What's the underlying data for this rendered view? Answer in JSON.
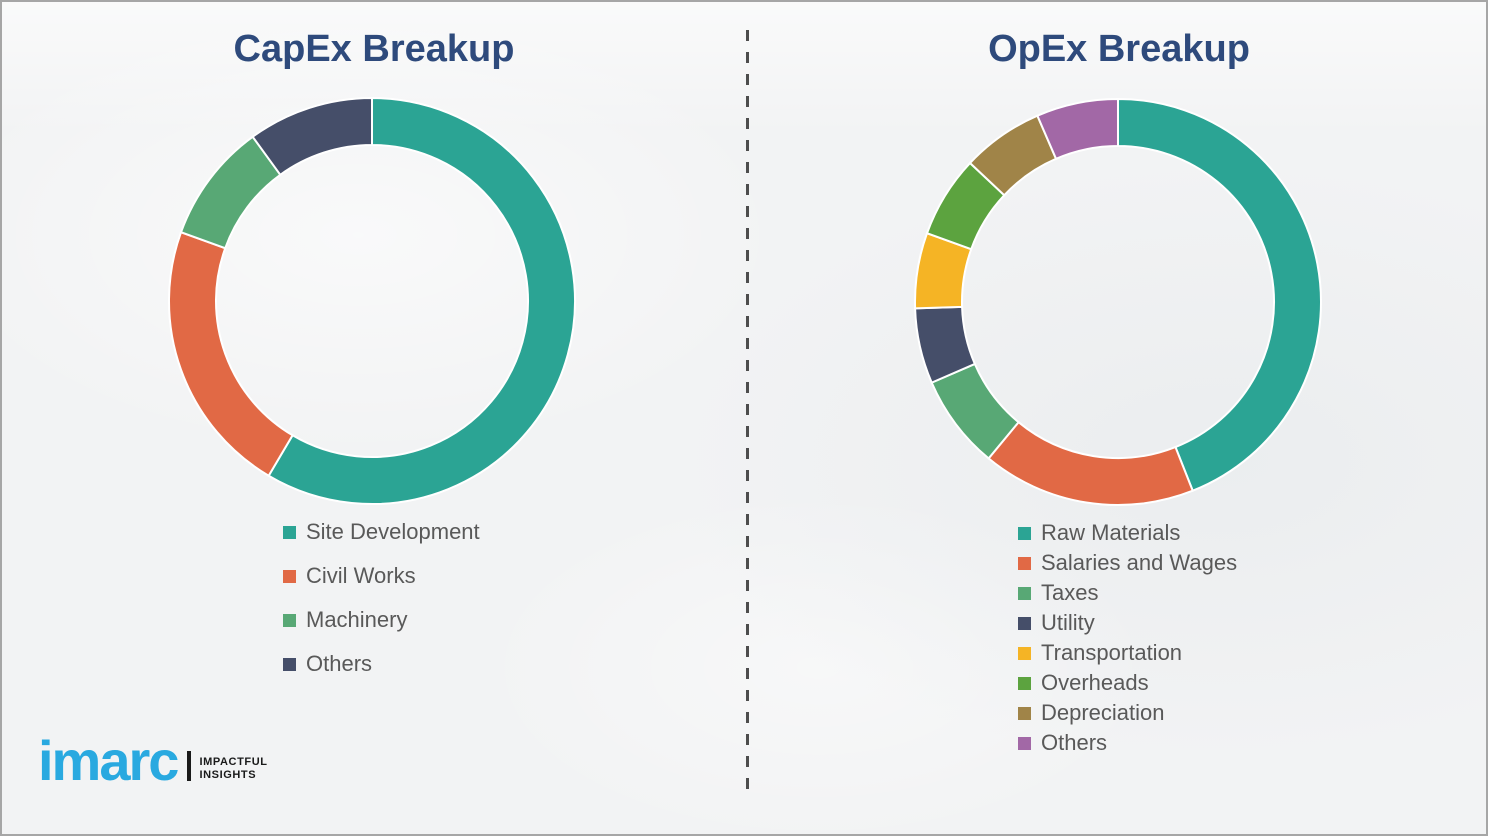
{
  "theme": {
    "background": "#f2f3f4",
    "border_color": "#a6a6a6",
    "divider_color": "#4d4d4d",
    "title_color": "#2e4a7c",
    "legend_text_color": "#595959",
    "segment_gap_color": "#ffffff",
    "logo_blue": "#29a9e0",
    "logo_black": "#1a1a1a"
  },
  "chart_data": [
    {
      "type": "donut",
      "title": "CapEx Breakup",
      "categories": [
        "Site Development",
        "Civil Works",
        "Machinery",
        "Others"
      ],
      "values": [
        58.5,
        22,
        9.5,
        10
      ],
      "colors": [
        "#2ba494",
        "#e16945",
        "#58a875",
        "#454e69"
      ],
      "units": "percent",
      "start_angle_deg": 0,
      "direction": "clockwise",
      "legend_position": "below"
    },
    {
      "type": "donut",
      "title": "OpEx Breakup",
      "categories": [
        "Raw Materials",
        "Salaries and Wages",
        "Taxes",
        "Utility",
        "Transportation",
        "Overheads",
        "Depreciation",
        "Others"
      ],
      "values": [
        44,
        17,
        7.5,
        6,
        6,
        6.5,
        6.5,
        6.5
      ],
      "colors": [
        "#2ba494",
        "#e16945",
        "#58a875",
        "#454e69",
        "#f5b425",
        "#5ca33f",
        "#a08448",
        "#a268a6"
      ],
      "units": "percent",
      "start_angle_deg": 0,
      "direction": "clockwise",
      "legend_position": "below"
    }
  ],
  "logo": {
    "wordmark": "imarc",
    "tagline_line1": "IMPACTFUL",
    "tagline_line2": "INSIGHTS"
  }
}
